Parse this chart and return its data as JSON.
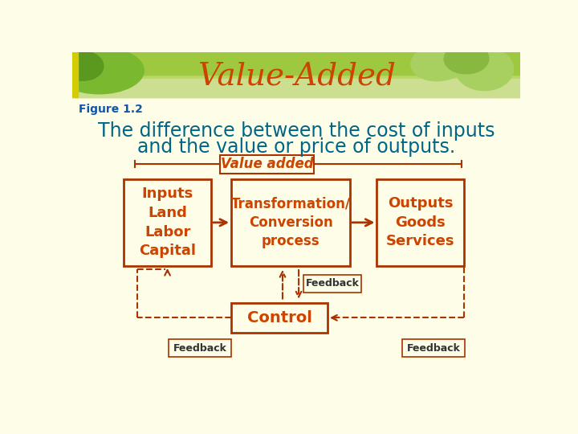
{
  "title": "Value-Added",
  "title_color": "#CC4400",
  "title_fontsize": 28,
  "figure_label": "Figure 1.2",
  "figure_label_color": "#1155AA",
  "subtitle_line1": "The difference between the cost of inputs",
  "subtitle_line2": "and the value or price of outputs.",
  "subtitle_color": "#006688",
  "subtitle_fontsize": 17,
  "value_added_label": "Value added",
  "value_added_color": "#CC4400",
  "box_edge_color": "#AA3300",
  "box_text_color": "#CC4400",
  "dashed_color": "#AA3300",
  "bg_color": "#FDFDE8",
  "header_color": "#A8C84A",
  "header_fade_color": "#D4E8A0",
  "inputs_text": "Inputs\nLand\nLabor\nCapital",
  "transform_text": "Transformation/\nConversion\nprocess",
  "outputs_text": "Outputs\nGoods\nServices",
  "control_text": "Control",
  "feedback_color": "#333333",
  "feedback_box_edge": "#AA3300",
  "arrow_color": "#AA3300"
}
